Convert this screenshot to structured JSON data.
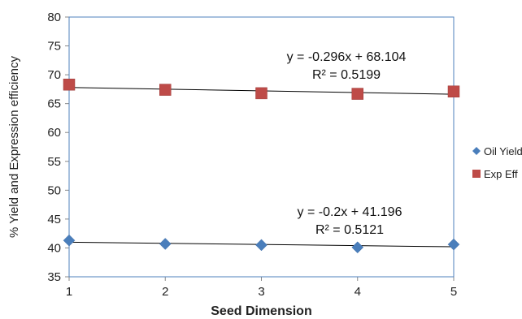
{
  "chart_data": {
    "type": "scatter",
    "xlabel": "Seed Dimension",
    "ylabel": "% Yield and Expression efficiency",
    "xlim": [
      1,
      5
    ],
    "ylim": [
      35,
      80
    ],
    "x_ticks": [
      "1",
      "2",
      "3",
      "4",
      "5"
    ],
    "y_ticks": [
      "35",
      "40",
      "45",
      "50",
      "55",
      "60",
      "65",
      "70",
      "75",
      "80"
    ],
    "grid": false,
    "legend_position": "right",
    "series": [
      {
        "name": "Oil Yield",
        "marker": "diamond",
        "color": "#4a7ebb",
        "x": [
          1,
          2,
          3,
          4,
          5
        ],
        "y": [
          41.3,
          40.7,
          40.5,
          40.1,
          40.6
        ],
        "trendline": {
          "slope": -0.2,
          "intercept": 41.196
        },
        "equation": "y = -0.2x + 41.196",
        "r_squared": "R² = 0.5121"
      },
      {
        "name": "Exp Eff",
        "marker": "square",
        "color": "#be4b48",
        "x": [
          1,
          2,
          3,
          4,
          5
        ],
        "y": [
          68.3,
          67.4,
          66.8,
          66.7,
          67.1
        ],
        "trendline": {
          "slope": -0.296,
          "intercept": 68.104
        },
        "equation": "y = -0.296x + 68.104",
        "r_squared": "R² = 0.5199"
      }
    ]
  }
}
